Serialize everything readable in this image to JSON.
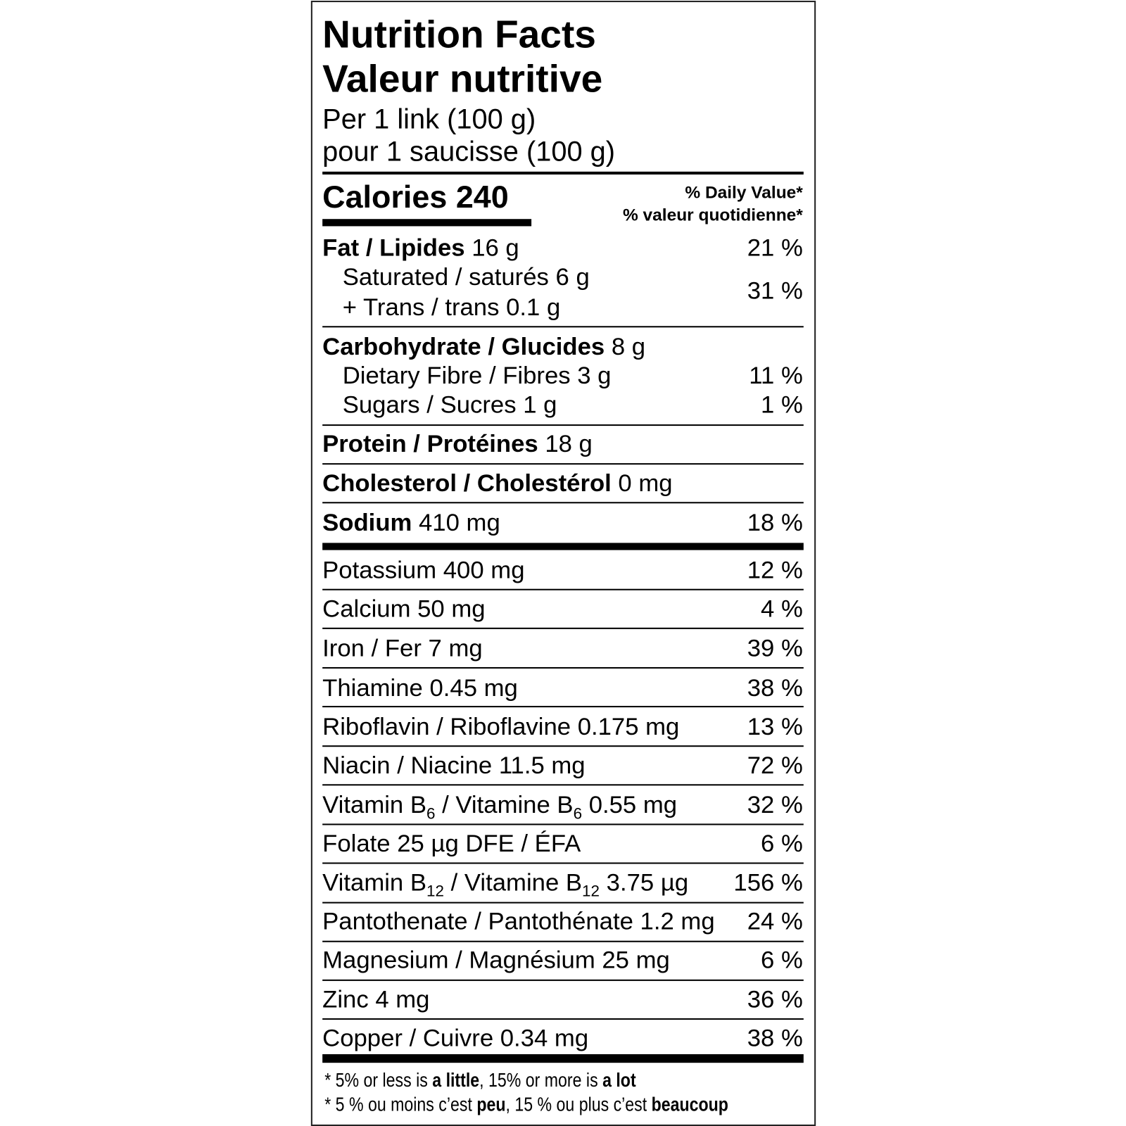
{
  "title_en": "Nutrition Facts",
  "title_fr": "Valeur nutritive",
  "serving_en": "Per 1 link (100 g)",
  "serving_fr": "pour 1 saucisse (100 g)",
  "calories": "Calories 240",
  "dv_en": "% Daily Value*",
  "dv_fr": "% valeur quotidienne*",
  "fat": {
    "label": "Fat / Lipides",
    "amount": " 16 g",
    "dv": "21 %"
  },
  "saturated": {
    "label": "Saturated / saturés 6 g"
  },
  "trans": {
    "label": "+ Trans / trans 0.1 g"
  },
  "sat_trans_dv": "31 %",
  "carb": {
    "label": "Carbohydrate / Glucides",
    "amount": " 8 g"
  },
  "fibre": {
    "label": "Dietary Fibre / Fibres 3 g",
    "dv": "11 %"
  },
  "sugars": {
    "label": "Sugars / Sucres 1 g",
    "dv": "1 %"
  },
  "protein": {
    "label": "Protein / Protéines",
    "amount": " 18 g"
  },
  "cholesterol": {
    "label": "Cholesterol / Cholestérol",
    "amount": " 0 mg"
  },
  "sodium": {
    "label": "Sodium",
    "amount": " 410 mg",
    "dv": "18 %"
  },
  "micros": [
    {
      "label": "Potassium 400 mg",
      "dv": "12 %"
    },
    {
      "label": "Calcium 50 mg",
      "dv": "4 %"
    },
    {
      "label": "Iron / Fer 7 mg",
      "dv": "39 %"
    },
    {
      "label": "Thiamine 0.45 mg",
      "dv": "38 %"
    },
    {
      "label": "Riboflavin / Riboflavine 0.175 mg",
      "dv": "13 %"
    },
    {
      "label": "Niacin / Niacine 11.5 mg",
      "dv": "72 %"
    },
    {
      "p1": "Vitamin B",
      "s1": "6",
      "p2": " / Vitamine B",
      "s2": "6",
      "p3": " 0.55 mg",
      "dv": "32 %"
    },
    {
      "label": "Folate 25 µg DFE / ÉFA",
      "dv": "6 %"
    },
    {
      "p1": "Vitamin B",
      "s1": "12",
      "p2": " / Vitamine B",
      "s2": "12",
      "p3": " 3.75 µg",
      "dv": "156 %"
    },
    {
      "label": "Pantothenate / Pantothénate 1.2 mg",
      "dv": "24 %"
    },
    {
      "label": "Magnesium / Magnésium 25 mg",
      "dv": "6 %"
    },
    {
      "label": "Zinc 4 mg",
      "dv": "36 %"
    },
    {
      "label": "Copper / Cuivre 0.34 mg",
      "dv": "38 %"
    }
  ],
  "footnote_en": {
    "a": "* 5% or less is ",
    "b": "a little",
    "c": ", 15% or more is ",
    "d": "a lot"
  },
  "footnote_fr": {
    "a": "* 5 % ou moins c’est ",
    "b": "peu",
    "c": ", 15 % ou plus c’est ",
    "d": "beaucoup"
  }
}
